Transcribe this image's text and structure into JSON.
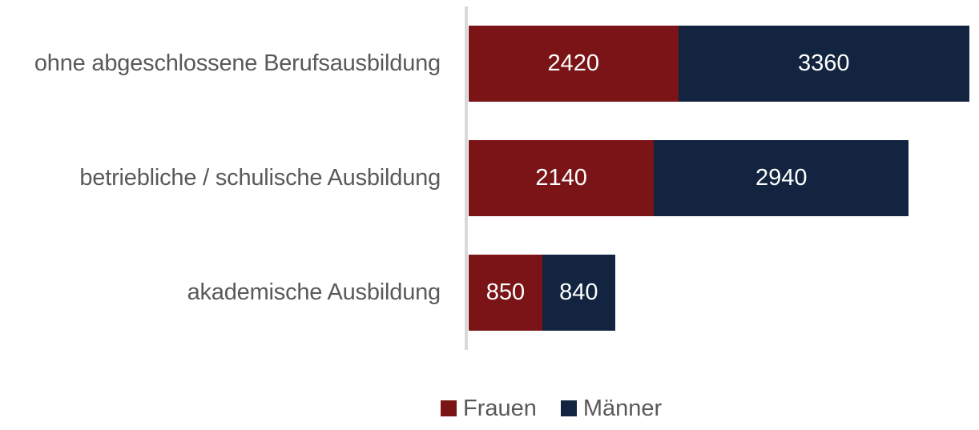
{
  "chart_data": {
    "type": "bar",
    "orientation": "horizontal",
    "stacked": true,
    "title": "",
    "xlabel": "",
    "ylabel": "",
    "categories": [
      "ohne abgeschlossene Berufsausbildung",
      "betriebliche / schulische Ausbildung",
      "akademische Ausbildung"
    ],
    "series": [
      {
        "name": "Frauen",
        "color": "#7b1416",
        "values": [
          2420,
          2140,
          850
        ]
      },
      {
        "name": "Männer",
        "color": "#12243f",
        "values": [
          3360,
          2940,
          840
        ]
      }
    ],
    "data_labels": true,
    "grid": false,
    "legend_position": "bottom"
  },
  "rows": [
    {
      "label": "ohne abgeschlossene Berufsausbildung",
      "frauen": "2420",
      "maenner": "3360"
    },
    {
      "label": "betriebliche / schulische Ausbildung",
      "frauen": "2140",
      "maenner": "2940"
    },
    {
      "label": "akademische Ausbildung",
      "frauen": "850",
      "maenner": "840"
    }
  ],
  "legend": {
    "frauen": "Frauen",
    "maenner": "Männer"
  }
}
